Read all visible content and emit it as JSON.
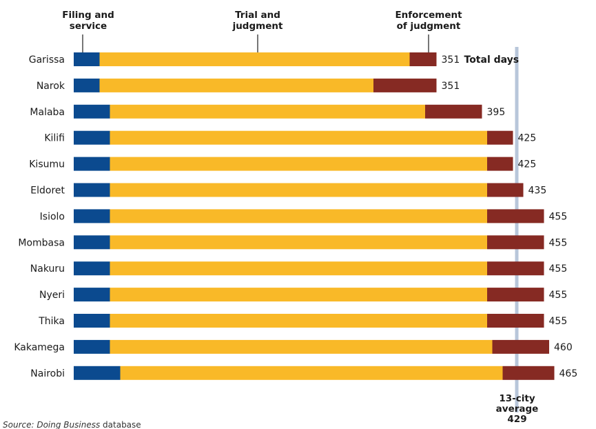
{
  "chart_data": {
    "type": "bar",
    "orientation": "horizontal",
    "stacked": true,
    "categories": [
      "Garissa",
      "Narok",
      "Malaba",
      "Kilifi",
      "Kisumu",
      "Eldoret",
      "Isiolo",
      "Mombasa",
      "Nakuru",
      "Nyeri",
      "Thika",
      "Kakamega",
      "Nairobi"
    ],
    "series": [
      {
        "name_lines": [
          "Filing and",
          "service"
        ],
        "color": "#0b4a8f",
        "values": [
          25,
          25,
          35,
          35,
          35,
          35,
          35,
          35,
          35,
          35,
          35,
          35,
          45
        ]
      },
      {
        "name_lines": [
          "Trial and",
          "judgment"
        ],
        "color": "#f9b928",
        "values": [
          300,
          265,
          305,
          365,
          365,
          365,
          365,
          365,
          365,
          365,
          365,
          370,
          370
        ]
      },
      {
        "name_lines": [
          "Enforcement",
          "of judgment"
        ],
        "color": "#862a23",
        "values": [
          26,
          61,
          55,
          25,
          25,
          35,
          55,
          55,
          55,
          55,
          55,
          55,
          50
        ]
      }
    ],
    "totals": [
      351,
      351,
      395,
      425,
      425,
      435,
      455,
      455,
      455,
      455,
      455,
      460,
      465
    ],
    "totals_label": "Total days",
    "average": {
      "value": 429,
      "label_lines": [
        "13-city",
        "average",
        "429"
      ],
      "color": "#b8c6da"
    },
    "xlim": [
      0,
      480
    ],
    "grid": false
  },
  "source": {
    "prefix": "Source: ",
    "italic": "Doing Business",
    "suffix": " database"
  }
}
